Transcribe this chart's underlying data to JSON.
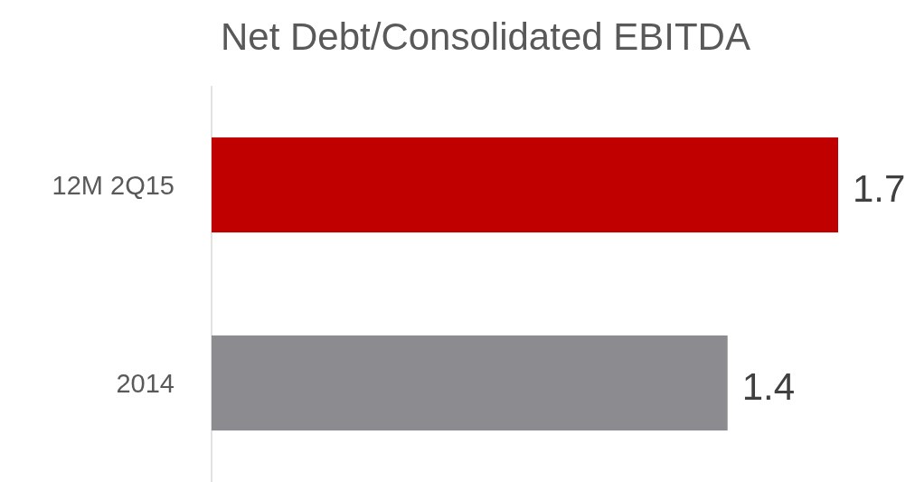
{
  "chart_data": {
    "type": "bar",
    "orientation": "horizontal",
    "title": "Net Debt/Consolidated EBITDA",
    "categories": [
      "12M 2Q15",
      "2014"
    ],
    "values": [
      1.7,
      1.4
    ],
    "colors": [
      "#c00000",
      "#8c8c90"
    ],
    "data_labels": true,
    "tick_labels": "y"
  }
}
